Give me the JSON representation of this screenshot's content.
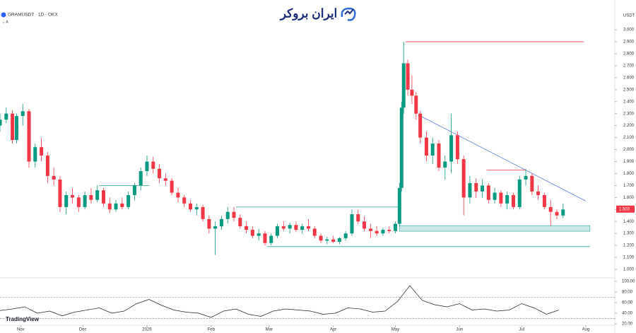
{
  "chart_data": {
    "type": "candlestick",
    "title": "GRAMUSDT · 1D · OKX",
    "currency": "USDT",
    "watermark": "ایران بروکر",
    "brand": "TradingView",
    "last_price": "1.503",
    "up_color": "#089981",
    "down_color": "#f23645",
    "x": [
      0,
      3,
      6,
      8,
      11,
      14,
      17,
      20,
      23,
      26,
      29,
      32,
      35,
      38,
      41,
      44,
      47,
      50,
      53,
      56,
      59,
      62,
      65,
      68,
      71,
      74,
      77,
      80,
      83,
      86,
      89,
      92,
      95,
      98,
      101,
      104,
      107,
      110,
      113,
      116,
      119,
      122,
      125,
      128,
      131,
      134,
      137,
      140,
      143,
      146,
      149,
      152,
      155,
      158,
      161,
      164,
      167,
      170,
      173,
      176,
      179,
      182,
      185,
      188,
      191,
      193,
      194,
      195,
      197,
      199,
      201,
      203,
      206,
      209,
      212,
      215,
      218,
      221,
      224,
      227,
      230,
      233,
      236,
      239,
      242,
      245,
      248,
      251,
      254,
      257,
      260,
      263,
      266,
      269,
      272
    ],
    "ohlc": [
      [
        2.2,
        2.3,
        2.15,
        2.25
      ],
      [
        2.25,
        2.35,
        2.22,
        2.3
      ],
      [
        2.3,
        2.33,
        2.05,
        2.08
      ],
      [
        2.08,
        2.3,
        2.05,
        2.28
      ],
      [
        2.28,
        2.38,
        2.2,
        2.32
      ],
      [
        2.32,
        2.34,
        1.85,
        1.9
      ],
      [
        1.9,
        2.05,
        1.85,
        2.02
      ],
      [
        2.02,
        2.1,
        1.9,
        1.95
      ],
      [
        1.95,
        1.98,
        1.72,
        1.78
      ],
      [
        1.78,
        1.85,
        1.7,
        1.75
      ],
      [
        1.75,
        1.78,
        1.48,
        1.52
      ],
      [
        1.52,
        1.65,
        1.46,
        1.62
      ],
      [
        1.62,
        1.68,
        1.55,
        1.6
      ],
      [
        1.6,
        1.62,
        1.48,
        1.52
      ],
      [
        1.52,
        1.65,
        1.5,
        1.62
      ],
      [
        1.62,
        1.68,
        1.55,
        1.58
      ],
      [
        1.58,
        1.7,
        1.56,
        1.66
      ],
      [
        1.66,
        1.68,
        1.52,
        1.55
      ],
      [
        1.55,
        1.6,
        1.47,
        1.5
      ],
      [
        1.5,
        1.58,
        1.48,
        1.55
      ],
      [
        1.55,
        1.6,
        1.5,
        1.52
      ],
      [
        1.52,
        1.65,
        1.5,
        1.62
      ],
      [
        1.62,
        1.72,
        1.58,
        1.7
      ],
      [
        1.7,
        1.85,
        1.66,
        1.82
      ],
      [
        1.82,
        1.95,
        1.78,
        1.9
      ],
      [
        1.9,
        1.94,
        1.8,
        1.84
      ],
      [
        1.84,
        1.88,
        1.72,
        1.76
      ],
      [
        1.76,
        1.8,
        1.7,
        1.74
      ],
      [
        1.74,
        1.76,
        1.62,
        1.64
      ],
      [
        1.64,
        1.68,
        1.56,
        1.6
      ],
      [
        1.6,
        1.62,
        1.52,
        1.55
      ],
      [
        1.55,
        1.58,
        1.48,
        1.5
      ],
      [
        1.5,
        1.55,
        1.45,
        1.52
      ],
      [
        1.52,
        1.54,
        1.4,
        1.42
      ],
      [
        1.42,
        1.45,
        1.3,
        1.34
      ],
      [
        1.34,
        1.4,
        1.12,
        1.36
      ],
      [
        1.36,
        1.45,
        1.33,
        1.42
      ],
      [
        1.42,
        1.52,
        1.38,
        1.48
      ],
      [
        1.48,
        1.52,
        1.4,
        1.43
      ],
      [
        1.43,
        1.46,
        1.34,
        1.36
      ],
      [
        1.36,
        1.4,
        1.3,
        1.33
      ],
      [
        1.33,
        1.36,
        1.26,
        1.28
      ],
      [
        1.28,
        1.34,
        1.24,
        1.3
      ],
      [
        1.3,
        1.32,
        1.2,
        1.22
      ],
      [
        1.22,
        1.3,
        1.2,
        1.28
      ],
      [
        1.28,
        1.38,
        1.26,
        1.36
      ],
      [
        1.36,
        1.4,
        1.32,
        1.34
      ],
      [
        1.34,
        1.39,
        1.3,
        1.37
      ],
      [
        1.37,
        1.4,
        1.31,
        1.33
      ],
      [
        1.33,
        1.38,
        1.3,
        1.36
      ],
      [
        1.36,
        1.42,
        1.32,
        1.34
      ],
      [
        1.34,
        1.36,
        1.26,
        1.28
      ],
      [
        1.28,
        1.3,
        1.22,
        1.24
      ],
      [
        1.24,
        1.27,
        1.21,
        1.25
      ],
      [
        1.25,
        1.28,
        1.22,
        1.23
      ],
      [
        1.23,
        1.27,
        1.21,
        1.26
      ],
      [
        1.26,
        1.32,
        1.24,
        1.3
      ],
      [
        1.3,
        1.5,
        1.28,
        1.46
      ],
      [
        1.46,
        1.5,
        1.38,
        1.4
      ],
      [
        1.4,
        1.44,
        1.32,
        1.34
      ],
      [
        1.34,
        1.38,
        1.26,
        1.32
      ],
      [
        1.32,
        1.36,
        1.28,
        1.3
      ],
      [
        1.3,
        1.35,
        1.28,
        1.33
      ],
      [
        1.33,
        1.36,
        1.3,
        1.32
      ],
      [
        1.32,
        1.4,
        1.3,
        1.38
      ],
      [
        1.38,
        1.72,
        1.36,
        1.68
      ],
      [
        1.68,
        2.4,
        1.65,
        2.35
      ],
      [
        2.35,
        2.9,
        2.3,
        2.72
      ],
      [
        2.72,
        2.75,
        2.45,
        2.5
      ],
      [
        2.5,
        2.62,
        2.38,
        2.45
      ],
      [
        2.45,
        2.48,
        2.25,
        2.3
      ],
      [
        2.3,
        2.32,
        2.05,
        2.1
      ],
      [
        2.1,
        2.15,
        1.9,
        1.95
      ],
      [
        1.95,
        2.1,
        1.88,
        2.05
      ],
      [
        2.05,
        2.08,
        1.82,
        1.85
      ],
      [
        1.85,
        1.95,
        1.75,
        1.9
      ],
      [
        1.9,
        2.3,
        1.8,
        2.12
      ],
      [
        2.12,
        2.15,
        1.88,
        1.92
      ],
      [
        1.92,
        1.95,
        1.45,
        1.6
      ],
      [
        1.6,
        1.78,
        1.55,
        1.72
      ],
      [
        1.72,
        1.76,
        1.6,
        1.65
      ],
      [
        1.65,
        1.75,
        1.6,
        1.7
      ],
      [
        1.7,
        1.72,
        1.55,
        1.58
      ],
      [
        1.58,
        1.68,
        1.55,
        1.64
      ],
      [
        1.64,
        1.66,
        1.52,
        1.55
      ],
      [
        1.55,
        1.65,
        1.5,
        1.62
      ],
      [
        1.62,
        1.64,
        1.5,
        1.52
      ],
      [
        1.52,
        1.78,
        1.5,
        1.75
      ],
      [
        1.75,
        1.84,
        1.7,
        1.78
      ],
      [
        1.78,
        1.8,
        1.62,
        1.65
      ],
      [
        1.65,
        1.7,
        1.58,
        1.62
      ],
      [
        1.62,
        1.64,
        1.5,
        1.52
      ],
      [
        1.52,
        1.58,
        1.36,
        1.48
      ],
      [
        1.48,
        1.5,
        1.42,
        1.45
      ],
      [
        1.45,
        1.55,
        1.43,
        1.5
      ]
    ],
    "xlim": [
      0,
      297
    ],
    "xticks": [
      {
        "value": 10,
        "label": "Nov"
      },
      {
        "value": 40,
        "label": "Dec"
      },
      {
        "value": 71,
        "label": "2026"
      },
      {
        "value": 102,
        "label": "Feb"
      },
      {
        "value": 130,
        "label": "Mar"
      },
      {
        "value": 161,
        "label": "Apr"
      },
      {
        "value": 191,
        "label": "May"
      },
      {
        "value": 222,
        "label": "Jun"
      },
      {
        "value": 252,
        "label": "Jul"
      },
      {
        "value": 283,
        "label": "Aug"
      }
    ],
    "ylim": [
      0.935,
      3.16
    ],
    "yticks": [
      {
        "value": 1.0,
        "label": "1.000"
      },
      {
        "value": 1.1,
        "label": "1.100"
      },
      {
        "value": 1.2,
        "label": "1.200"
      },
      {
        "value": 1.3,
        "label": "1.300"
      },
      {
        "value": 1.4,
        "label": "1.400"
      },
      {
        "value": 1.5,
        "label": "1.500"
      },
      {
        "value": 1.6,
        "label": "1.600"
      },
      {
        "value": 1.7,
        "label": "1.700"
      },
      {
        "value": 1.8,
        "label": "1.800"
      },
      {
        "value": 1.9,
        "label": "1.900"
      },
      {
        "value": 2.0,
        "label": "2.000"
      },
      {
        "value": 2.1,
        "label": "2.100"
      },
      {
        "value": 2.2,
        "label": "2.200"
      },
      {
        "value": 2.3,
        "label": "2.300"
      },
      {
        "value": 2.4,
        "label": "2.400"
      },
      {
        "value": 2.5,
        "label": "2.500"
      },
      {
        "value": 2.6,
        "label": "2.600"
      },
      {
        "value": 2.7,
        "label": "2.700"
      },
      {
        "value": 2.8,
        "label": "2.800"
      },
      {
        "value": 2.9,
        "label": "2.900"
      },
      {
        "value": 3.0,
        "label": "3.000"
      }
    ],
    "drawings": [
      {
        "kind": "line",
        "color": "#f23645",
        "x": [
          196,
          282
        ],
        "y": [
          2.9,
          2.9
        ]
      },
      {
        "kind": "line",
        "color": "#5b7be0",
        "x": [
          202,
          283
        ],
        "y": [
          2.29,
          1.57
        ]
      },
      {
        "kind": "zone",
        "color": "#26a69a",
        "x": [
          193,
          285
        ],
        "y": [
          1.318,
          1.365
        ]
      },
      {
        "kind": "line",
        "color": "#26a69a",
        "x": [
          114,
          193
        ],
        "y": [
          1.52,
          1.52
        ]
      },
      {
        "kind": "line",
        "color": "#26a69a",
        "x": [
          129,
          285
        ],
        "y": [
          1.19,
          1.19
        ]
      },
      {
        "kind": "line",
        "color": "#26a69a",
        "x": [
          48,
          72
        ],
        "y": [
          1.7,
          1.7
        ]
      },
      {
        "kind": "line",
        "color": "#f23645",
        "x": [
          235,
          254
        ],
        "y": [
          1.83,
          1.83
        ]
      }
    ],
    "rsi": {
      "x": [
        0,
        6,
        12,
        18,
        24,
        30,
        36,
        42,
        48,
        54,
        60,
        66,
        72,
        78,
        84,
        90,
        96,
        102,
        108,
        114,
        120,
        126,
        132,
        138,
        144,
        150,
        156,
        162,
        168,
        174,
        180,
        186,
        192,
        198,
        204,
        210,
        216,
        222,
        228,
        234,
        240,
        246,
        252,
        258,
        264,
        270
      ],
      "values": [
        45,
        48,
        52,
        40,
        44,
        35,
        42,
        46,
        50,
        40,
        44,
        58,
        66,
        55,
        46,
        42,
        40,
        32,
        44,
        48,
        38,
        34,
        44,
        48,
        46,
        44,
        38,
        40,
        50,
        48,
        42,
        44,
        62,
        92,
        64,
        56,
        52,
        58,
        46,
        48,
        44,
        46,
        58,
        50,
        38,
        46
      ],
      "color": "#222222",
      "levels": [
        70,
        30
      ],
      "ylim": [
        17.3,
        106.7
      ],
      "yticks": [
        {
          "value": 20,
          "label": "20.00"
        },
        {
          "value": 40,
          "label": "40.00"
        },
        {
          "value": 60,
          "label": "60.00"
        },
        {
          "value": 80,
          "label": "80.00"
        },
        {
          "value": 100,
          "label": "100.00"
        }
      ]
    }
  }
}
